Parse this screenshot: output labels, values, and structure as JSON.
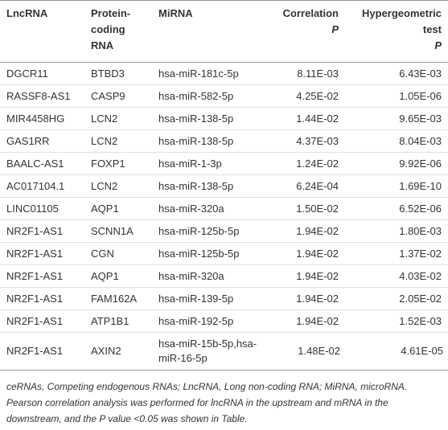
{
  "table": {
    "header": [
      "LncRNA",
      "Protein-coding RNA",
      "MiRNA",
      [
        "Correlation",
        "P"
      ],
      [
        "Hypergeometric test",
        "P"
      ]
    ],
    "rows": [
      [
        "DGCR11",
        "BTBD3",
        "hsa-miR-181c-5p",
        "8.11E-03",
        "6.43E-03"
      ],
      [
        "RASSF8-AS1",
        "CASP9",
        "hsa-miR-582-5p",
        "4.25E-02",
        "1.05E-06"
      ],
      [
        "MIR4458HG",
        "LCN2",
        "hsa-miR-138-5p",
        "1.44E-02",
        "9.65E-03"
      ],
      [
        "GAS1RR",
        "LCN2",
        "hsa-miR-138-5p",
        "4.37E-03",
        "8.04E-03"
      ],
      [
        "BAALC-AS1",
        "FOXP1",
        "hsa-miR-1-3p",
        "1.24E-02",
        "9.92E-06"
      ],
      [
        "AC017104.1",
        "LCN2",
        "hsa-miR-138-5p",
        "6.24E-04",
        "1.69E-10"
      ],
      [
        "LINC01105",
        "AQP1",
        "hsa-miR-320a",
        "1.50E-02",
        "6.52E-06"
      ],
      [
        "NR2F1-AS1",
        "SCNN1A",
        "hsa-miR-125b-5p",
        "1.94E-02",
        "1.80E-03"
      ],
      [
        "NR2F1-AS1",
        "CGN",
        "hsa-miR-125b-5p",
        "1.94E-02",
        "1.37E-02"
      ],
      [
        "NR2F1-AS1",
        "AQP1",
        "hsa-miR-320a",
        "1.94E-02",
        "4.03E-02"
      ],
      [
        "NR2F1-AS1",
        "FAM162A",
        "hsa-miR-139-5p",
        "1.94E-02",
        "2.05E-02"
      ],
      [
        "NR2F1-AS1",
        "ATP1B1",
        "hsa-miR-192-5p",
        "1.94E-02",
        "1.52E-03"
      ],
      [
        "NR2F1-AS1",
        "AXIN2",
        "hsa-miR-15b-5p,hsa-miR-16-5p",
        "1.48E-02",
        "4.61E-05"
      ]
    ]
  },
  "footnote": "ceRNAs, Competing endogenous RNAs; LncRNA, Long non-coding RNA; MiRNA, microRNA. Pearson correlation analysis was performed for lncRNA in the upstream and mRNA in the downstream, and the P value <0.05 was shown in Table."
}
